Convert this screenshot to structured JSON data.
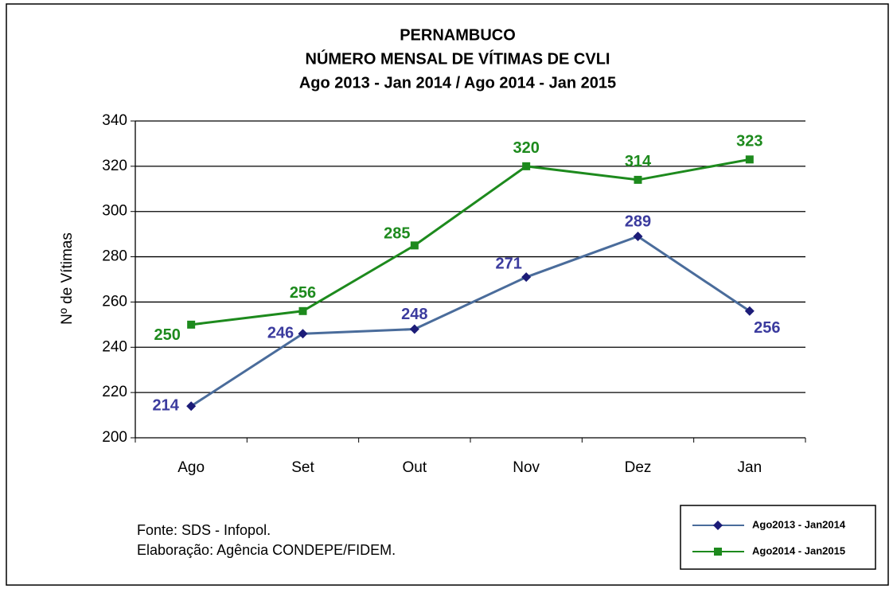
{
  "chart_data": {
    "type": "line",
    "title": [
      "PERNAMBUCO",
      "NÚMERO MENSAL DE VÍTIMAS DE CVLI",
      "Ago 2013 - Jan 2014  /  Ago 2014 - Jan 2015"
    ],
    "y_label": "Nº de Vítimas",
    "categories": [
      "Ago",
      "Set",
      "Out",
      "Nov",
      "Dez",
      "Jan"
    ],
    "series": [
      {
        "name": "Ago2013 - Jan2014",
        "color": "#4a6c9b",
        "marker_color": "#1c1c78",
        "label_color": "#3b3b9e",
        "marker": "diamond",
        "values": [
          214,
          246,
          248,
          271,
          289,
          256
        ]
      },
      {
        "name": "Ago2014 - Jan2015",
        "color": "#1d8a1d",
        "marker_color": "#1d8a1d",
        "label_color": "#1d8a1d",
        "marker": "square",
        "values": [
          250,
          256,
          285,
          320,
          314,
          323
        ]
      }
    ],
    "ylim": [
      200,
      340
    ],
    "yticks": [
      200,
      220,
      240,
      260,
      280,
      300,
      320,
      340
    ],
    "grid": true,
    "legend": "bottom-right",
    "notes": [
      "Fonte: SDS - Infopol.",
      "Elaboração: Agência CONDEPE/FIDEM."
    ]
  }
}
